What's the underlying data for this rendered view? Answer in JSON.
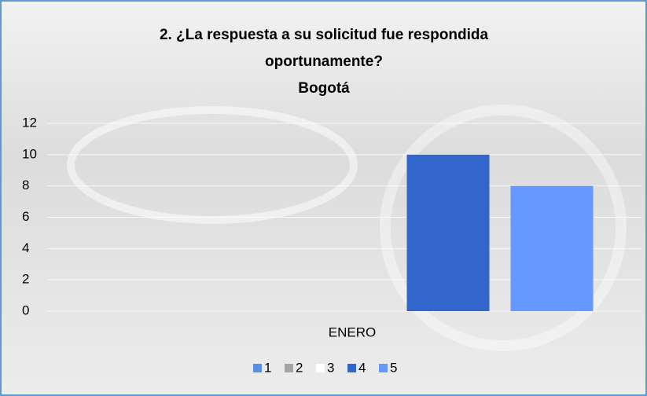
{
  "chart_data": {
    "type": "bar",
    "title": "2. ¿La respuesta a su solicitud fue respondida oportunamente?",
    "subtitle": "Bogotá",
    "categories": [
      "ENERO"
    ],
    "series": [
      {
        "name": "1",
        "color": "#5b8fe6",
        "values": [
          0
        ]
      },
      {
        "name": "2",
        "color": "#a5a5a5",
        "values": [
          0
        ]
      },
      {
        "name": "3",
        "color": "#ffffff",
        "values": [
          0
        ]
      },
      {
        "name": "4",
        "color": "#3366cc",
        "values": [
          10
        ]
      },
      {
        "name": "5",
        "color": "#6699ff",
        "values": [
          8
        ]
      }
    ],
    "ylim": [
      0,
      12
    ],
    "yticks": [
      0,
      2,
      4,
      6,
      8,
      10,
      12
    ],
    "grid": true,
    "legend": "bottom"
  }
}
